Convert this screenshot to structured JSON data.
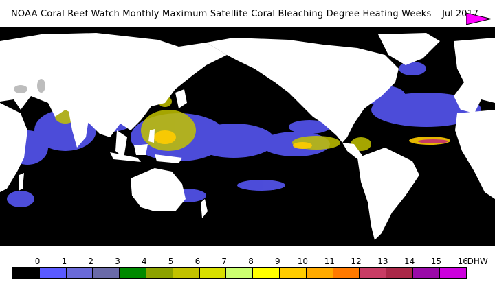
{
  "header": {
    "title": "NOAA Coral Reef Watch Monthly Maximum Satellite Coral Bleaching Degree Heating Weeks",
    "date": "Jul 2017"
  },
  "legend": {
    "unit": "DHW",
    "classes": [
      {
        "value": "0",
        "color": "#000000"
      },
      {
        "value": "1",
        "color": "#5a5aff"
      },
      {
        "value": "2",
        "color": "#6a6ad8"
      },
      {
        "value": "3",
        "color": "#6a6aa8"
      },
      {
        "value": "4",
        "color": "#008a00"
      },
      {
        "value": "5",
        "color": "#8ca200"
      },
      {
        "value": "6",
        "color": "#c2c200"
      },
      {
        "value": "7",
        "color": "#d8e000"
      },
      {
        "value": "8",
        "color": "#ccff70"
      },
      {
        "value": "9",
        "color": "#ffff00"
      },
      {
        "value": "10",
        "color": "#ffcc00"
      },
      {
        "value": "11",
        "color": "#ffaa00"
      },
      {
        "value": "12",
        "color": "#ff7a00"
      },
      {
        "value": "13",
        "color": "#c83c64"
      },
      {
        "value": "14",
        "color": "#aa2848"
      },
      {
        "value": "15",
        "color": "#9a0aa8"
      },
      {
        "value": "16",
        "color": "#cc00dd"
      }
    ],
    "overflow_color": "#ff00ff"
  },
  "map": {
    "background": "ocean-black",
    "land_color": "#ffffff"
  }
}
